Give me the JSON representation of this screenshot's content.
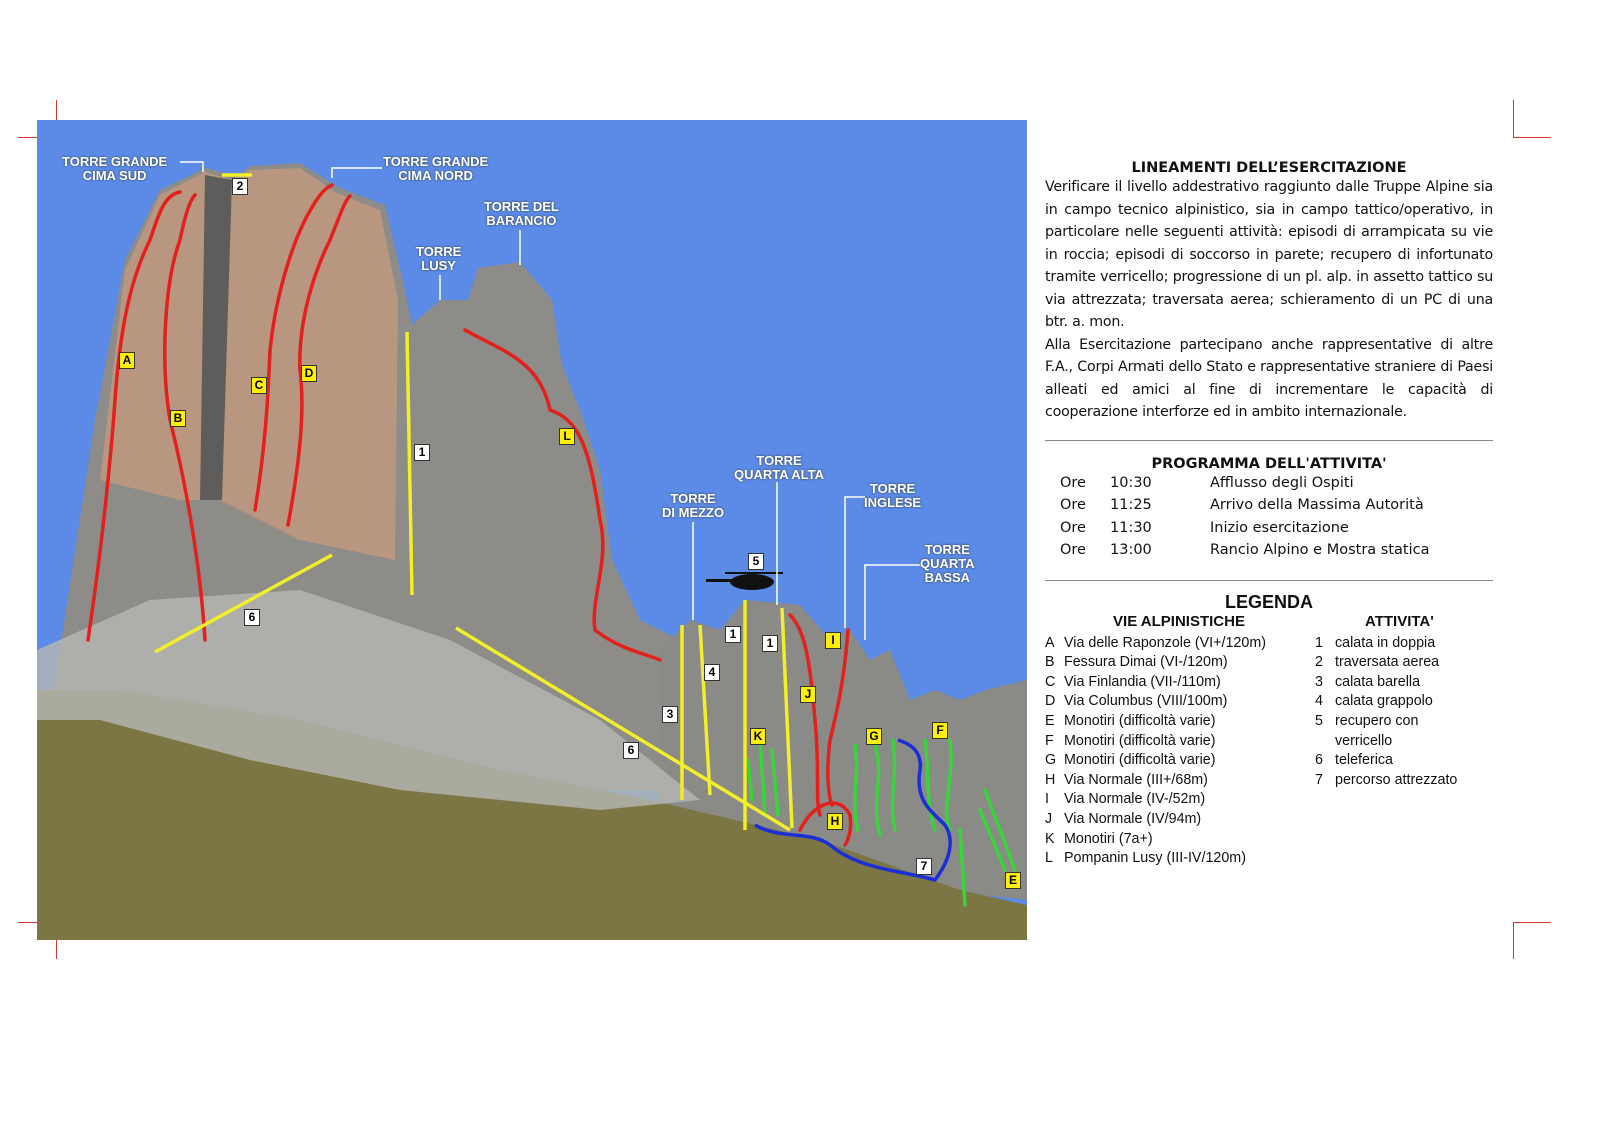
{
  "photo": {
    "sky_color": "#5b8be6",
    "towers": [
      {
        "id": "tgs",
        "label": "TORRE GRANDE\nCIMA SUD"
      },
      {
        "id": "tgn",
        "label": "TORRE GRANDE\nCIMA NORD"
      },
      {
        "id": "tdb",
        "label": "TORRE DEL\nBARANCIO"
      },
      {
        "id": "tl",
        "label": "TORRE\nLUSY"
      },
      {
        "id": "tqa",
        "label": "TORRE\nQUARTA ALTA"
      },
      {
        "id": "tdm",
        "label": "TORRE\nDI MEZZO"
      },
      {
        "id": "ti",
        "label": "TORRE\nINGLESE"
      },
      {
        "id": "tqb",
        "label": "TORRE\nQUARTA\nBASSA"
      }
    ],
    "route_tags": [
      "A",
      "B",
      "C",
      "D",
      "L",
      "J",
      "I",
      "K",
      "G",
      "F",
      "H",
      "E"
    ],
    "activity_tags": [
      "2",
      "1",
      "6",
      "6",
      "5",
      "1",
      "1",
      "4",
      "3",
      "7"
    ],
    "route_colors": {
      "climbing": "#e3201b",
      "single_pitch": "#39d43a",
      "activity": "#f3ee2a",
      "via_ferrata": "#1b2fd8"
    }
  },
  "lineamenti": {
    "title": "LINEAMENTI DELL’ESERCITAZIONE",
    "text": "Verificare il livello addestrativo raggiunto dalle Truppe Alpine sia in campo tecnico alpinistico, sia in campo tattico/operativo, in particolare nelle seguenti attività: episodi di arrampicata su vie in roccia; episodi di soccorso in parete; recupero di infortunato tramite verricello; progressione di un pl. alp. in assetto tattico su via attrezzata; traversata aerea; schieramento di un PC di una btr. a. mon.",
    "text2": "Alla Esercitazione partecipano anche rappresentative di altre F.A., Corpi Armati dello Stato e rappresentative straniere di Paesi alleati ed amici al fine di incrementare le capacità di cooperazione interforze ed in ambito internazionale."
  },
  "programma": {
    "title": "PROGRAMMA DELL'ATTIVITA'",
    "rows": [
      {
        "ore": "Ore",
        "time": "10:30",
        "desc": "Afflusso degli Ospiti"
      },
      {
        "ore": "Ore",
        "time": "11:25",
        "desc": "Arrivo della Massima Autorità"
      },
      {
        "ore": "Ore",
        "time": "11:30",
        "desc": "Inizio esercitazione"
      },
      {
        "ore": "Ore",
        "time": "13:00",
        "desc": "Rancio Alpino e Mostra statica"
      }
    ]
  },
  "legenda": {
    "title": "LEGENDA",
    "vie_title": "VIE ALPINISTICHE",
    "attivita_title": "ATTIVITA'",
    "vie": [
      {
        "k": "A",
        "v": "Via delle Raponzole (VI+/120m)"
      },
      {
        "k": "B",
        "v": "Fessura Dimai (VI-/120m)"
      },
      {
        "k": "C",
        "v": "Via Finlandia (VII-/110m)"
      },
      {
        "k": "D",
        "v": "Via Columbus (VIII/100m)"
      },
      {
        "k": "E",
        "v": "Monotiri (difficoltà varie)"
      },
      {
        "k": "F",
        "v": "Monotiri (difficoltà varie)"
      },
      {
        "k": "G",
        "v": "Monotiri (difficoltà varie)"
      },
      {
        "k": "H",
        "v": "Via Normale (III+/68m)"
      },
      {
        "k": "I",
        "v": "Via Normale (IV-/52m)"
      },
      {
        "k": "J",
        "v": "Via Normale (IV/94m)"
      },
      {
        "k": "K",
        "v": "Monotiri (7a+)"
      },
      {
        "k": "L",
        "v": "Pompanin Lusy (III-IV/120m)"
      }
    ],
    "attivita": [
      {
        "k": "1",
        "v": "calata in doppia"
      },
      {
        "k": "2",
        "v": "traversata aerea"
      },
      {
        "k": "3",
        "v": "calata barella"
      },
      {
        "k": "4",
        "v": "calata grappolo"
      },
      {
        "k": "5",
        "v": "recupero con"
      },
      {
        "k": "",
        "v": "verricello"
      },
      {
        "k": "6",
        "v": "teleferica"
      },
      {
        "k": "7",
        "v": "percorso attrezzato"
      }
    ]
  }
}
